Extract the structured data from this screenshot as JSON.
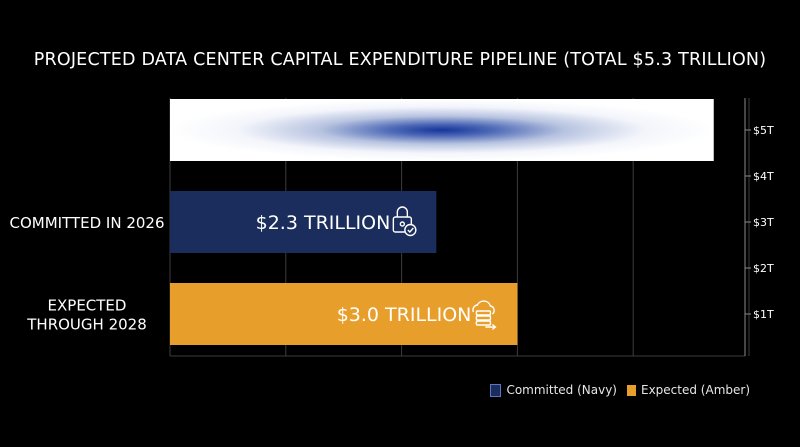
{
  "chart_data": {
    "type": "bar",
    "title": "PROJECTED DATA CENTER CAPITAL EXPENDITURE PIPELINE (TOTAL $5.3 TRILLION)",
    "total": {
      "value": 5.3
    },
    "categories": [
      "COMMITTED IN 2026",
      "EXPECTED THROUGH 2028"
    ],
    "bars": [
      {
        "category_label": "COMMITTED IN 2026",
        "value": 2.3,
        "label": "$2.3 TRILLION",
        "color": "#1b2d5c",
        "icon": "lock-check-icon"
      },
      {
        "category_label": "EXPECTED\nTHROUGH 2028",
        "value": 3.0,
        "label": "$3.0 TRILLION",
        "color": "#e89e2b",
        "icon": "cloud-server-icon"
      }
    ],
    "axis": {
      "side": "right",
      "ticks": [
        {
          "value": 1,
          "label": "$1T"
        },
        {
          "value": 2,
          "label": "$2T"
        },
        {
          "value": 3,
          "label": "$3T"
        },
        {
          "value": 4,
          "label": "$4T"
        },
        {
          "value": 5,
          "label": "$5T"
        }
      ]
    },
    "grid": true,
    "legend": {
      "position": "bottom-right",
      "items": [
        {
          "label": "Committed (Navy)",
          "color": "#1b2d5c"
        },
        {
          "label": "Expected (Amber)",
          "color": "#e89e2b"
        }
      ]
    }
  }
}
